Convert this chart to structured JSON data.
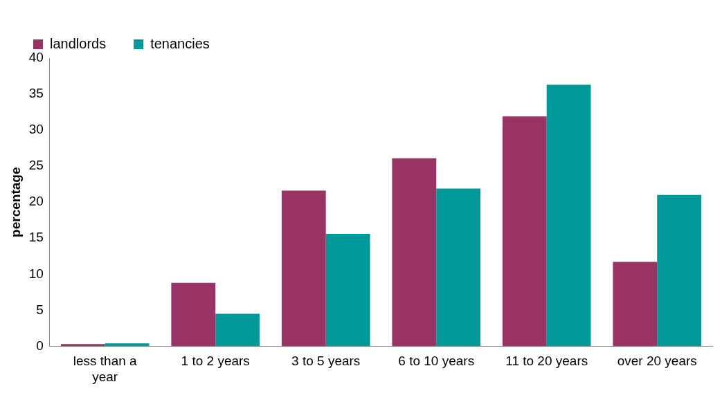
{
  "chart_data": {
    "type": "bar",
    "ylabel": "percentage",
    "categories": [
      "less than a year",
      "1 to 2 years",
      "3 to 5 years",
      "6 to 10 years",
      "11 to 20 years",
      "over 20 years"
    ],
    "series": [
      {
        "name": "landlords",
        "color": "#993366",
        "values": [
          0.3,
          8.8,
          21.6,
          26.1,
          31.9,
          11.7
        ]
      },
      {
        "name": "tenancies",
        "color": "#009999",
        "values": [
          0.4,
          4.5,
          15.6,
          21.9,
          36.3,
          21.0
        ]
      }
    ],
    "ylim": [
      0,
      40
    ],
    "yticks": [
      0,
      5,
      10,
      15,
      20,
      25,
      30,
      35,
      40
    ],
    "grid": false,
    "legend": "top left"
  }
}
